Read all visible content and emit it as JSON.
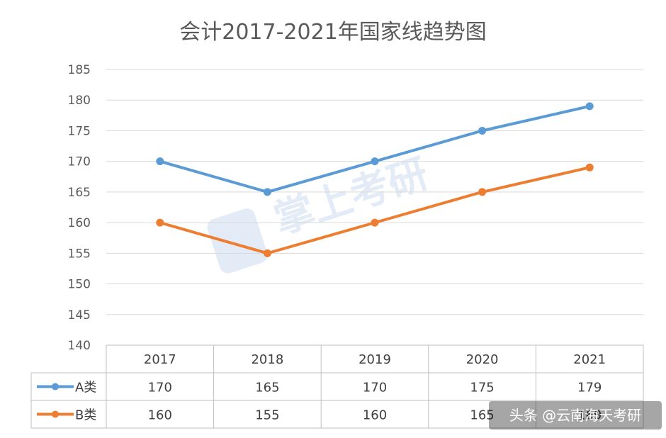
{
  "chart_data": {
    "type": "line",
    "title": "会计2017-2021年国家线趋势图",
    "categories": [
      "2017",
      "2018",
      "2019",
      "2020",
      "2021"
    ],
    "series": [
      {
        "name": "A类",
        "color": "#5b9bd5",
        "values": [
          170,
          165,
          170,
          175,
          179
        ]
      },
      {
        "name": "B类",
        "color": "#ed7d31",
        "values": [
          160,
          155,
          160,
          165,
          169
        ]
      }
    ],
    "ylim": [
      140,
      185
    ],
    "yticks": [
      140,
      145,
      150,
      155,
      160,
      165,
      170,
      175,
      180,
      185
    ],
    "grid": true,
    "legend": "data-table"
  },
  "watermark": {
    "text": "掌上考研"
  },
  "credit": {
    "text": "头条 @云南海天考研"
  }
}
